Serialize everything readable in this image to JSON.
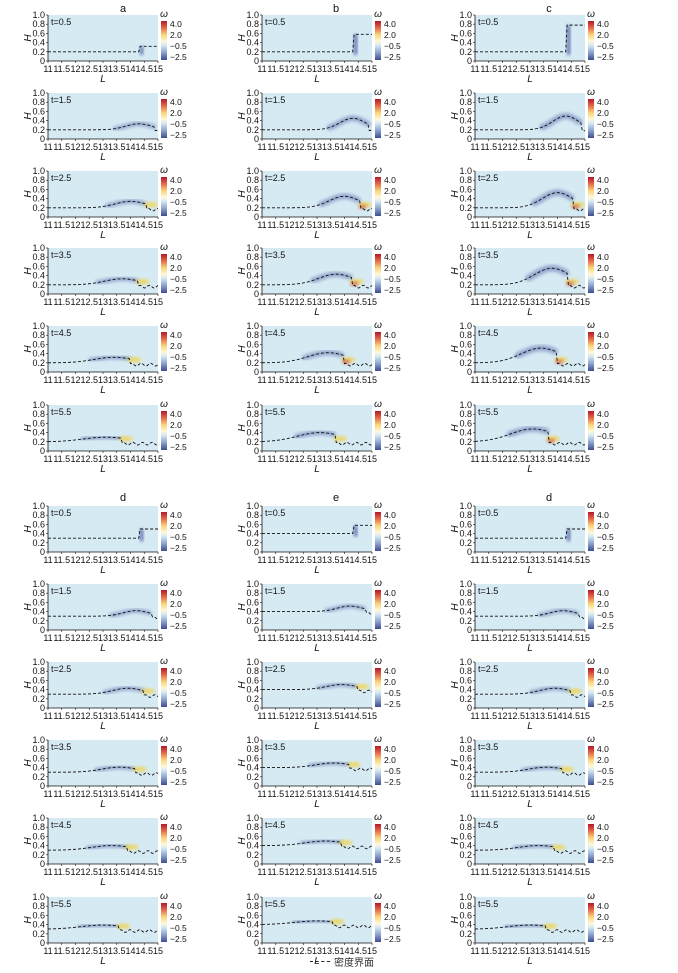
{
  "figure": {
    "column_labels_top": [
      "a",
      "b",
      "c"
    ],
    "column_labels_bottom": [
      "d",
      "e",
      "d"
    ],
    "legend_note": "密度界面",
    "colorbar": {
      "symbol": "ω",
      "ticks": [
        "4.0",
        "2.0",
        "−0.5",
        "−2.5"
      ]
    },
    "colors": {
      "background": "#d6eaf4",
      "vortex_blue": "#5b6fae",
      "vortex_red": "#d0473a",
      "vortex_yellow": "#f2d23c"
    }
  },
  "chart_data": {
    "type": "heatmap",
    "xlabel": "L",
    "ylabel": "H",
    "xlim": [
      11,
      15
    ],
    "ylim": [
      0,
      1.0
    ],
    "xticks": [
      "11",
      "11.5",
      "12",
      "12.5",
      "13",
      "13.5",
      "14",
      "14.5",
      "15"
    ],
    "yticks": [
      "0",
      "0.2",
      "0.4",
      "0.6",
      "0.8",
      "1.0"
    ],
    "times": [
      "t=0.5",
      "t=1.5",
      "t=2.5",
      "t=3.5",
      "t=4.5",
      "t=5.5"
    ],
    "panels": [
      {
        "col": "a",
        "base_h": 0.2,
        "wave_peak_x": [
          14.3,
          14.3,
          14.0,
          13.7,
          13.4,
          13.1
        ],
        "wave_amp": [
          0.12,
          0.13,
          0.14,
          0.13,
          0.12,
          0.1
        ]
      },
      {
        "col": "b",
        "base_h": 0.2,
        "wave_peak_x": [
          14.45,
          14.3,
          14.0,
          13.7,
          13.4,
          13.1
        ],
        "wave_amp": [
          0.38,
          0.25,
          0.25,
          0.23,
          0.22,
          0.2
        ]
      },
      {
        "col": "c",
        "base_h": 0.2,
        "wave_peak_x": [
          14.45,
          14.3,
          14.0,
          13.8,
          13.4,
          13.1
        ],
        "wave_amp": [
          0.58,
          0.3,
          0.33,
          0.36,
          0.32,
          0.28
        ]
      },
      {
        "col": "d",
        "base_h": 0.3,
        "wave_peak_x": [
          14.4,
          14.2,
          13.9,
          13.6,
          13.3,
          13.0
        ],
        "wave_amp": [
          0.2,
          0.12,
          0.13,
          0.11,
          0.1,
          0.09
        ]
      },
      {
        "col": "e",
        "base_h": 0.4,
        "wave_peak_x": [
          14.4,
          14.2,
          13.9,
          13.6,
          13.3,
          13.0
        ],
        "wave_amp": [
          0.18,
          0.12,
          0.11,
          0.1,
          0.1,
          0.08
        ]
      },
      {
        "col": "d",
        "base_h": 0.3,
        "wave_peak_x": [
          14.4,
          14.2,
          13.9,
          13.6,
          13.3,
          13.0
        ],
        "wave_amp": [
          0.2,
          0.12,
          0.13,
          0.11,
          0.1,
          0.09
        ]
      }
    ]
  }
}
